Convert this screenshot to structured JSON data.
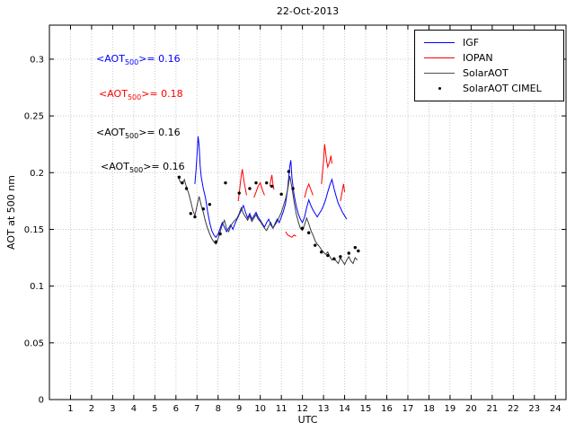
{
  "title": "22-Oct-2013",
  "axes": {
    "xlabel": "UTC",
    "ylabel": "AOT at 500 nm"
  },
  "annotations": [
    {
      "pre": "<AOT",
      "sub": "500",
      "post": ">= 0.16",
      "color": "#0000ff"
    },
    {
      "pre": "<AOT",
      "sub": "500",
      "post": ">= 0.18",
      "color": "#ff0000"
    },
    {
      "pre": "<AOT",
      "sub": "500",
      "post": ">= 0.16",
      "color": "#000000"
    },
    {
      "pre": "<AOT",
      "sub": "500",
      "post": ">= 0.16",
      "color": "#000000"
    }
  ],
  "legend": {
    "items": [
      {
        "label": "IGF",
        "color": "#0000ff",
        "type": "line"
      },
      {
        "label": "IOPAN",
        "color": "#ff0000",
        "type": "line"
      },
      {
        "label": "SolarAOT",
        "color": "#4d4d4d",
        "type": "line"
      },
      {
        "label": "SolarAOT CIMEL",
        "color": "#000000",
        "type": "dot"
      }
    ]
  },
  "chart_data": {
    "type": "line",
    "title": "22-Oct-2013",
    "xlabel": "UTC",
    "ylabel": "AOT at 500 nm",
    "xlim": [
      0,
      24.5
    ],
    "ylim": [
      0,
      0.33
    ],
    "grid": true,
    "legend_position": "top-right",
    "xticks": [
      1,
      2,
      3,
      4,
      5,
      6,
      7,
      8,
      9,
      10,
      11,
      12,
      13,
      14,
      15,
      16,
      17,
      18,
      19,
      20,
      21,
      22,
      23,
      24
    ],
    "xticklabels": [
      "1",
      "2",
      "3",
      "4",
      "5",
      "6",
      "7",
      "8",
      "9",
      "10",
      "11",
      "12",
      "13",
      "14",
      "15",
      "16",
      "17",
      "18",
      "19",
      "20",
      "21",
      "22",
      "23",
      "24"
    ],
    "yticks": [
      0,
      0.05,
      0.1,
      0.15,
      0.2,
      0.25,
      0.3
    ],
    "yticklabels": [
      "0",
      "0.05",
      "0.1",
      "0.15",
      "0.2",
      "0.25",
      "0.3"
    ],
    "series": [
      {
        "name": "IGF",
        "color": "#0000ff",
        "type": "line",
        "mean_label": "<AOT500>= 0.16",
        "points": [
          [
            6.9,
            0.19
          ],
          [
            6.95,
            0.201
          ],
          [
            7.0,
            0.216
          ],
          [
            7.05,
            0.232
          ],
          [
            7.1,
            0.224
          ],
          [
            7.15,
            0.206
          ],
          [
            7.2,
            0.196
          ],
          [
            7.3,
            0.186
          ],
          [
            7.4,
            0.178
          ],
          [
            7.5,
            0.166
          ],
          [
            7.6,
            0.156
          ],
          [
            7.7,
            0.149
          ],
          [
            7.8,
            0.145
          ],
          [
            7.9,
            0.143
          ],
          [
            8.0,
            0.146
          ],
          [
            8.1,
            0.151
          ],
          [
            8.2,
            0.156
          ],
          [
            8.3,
            0.152
          ],
          [
            8.4,
            0.148
          ],
          [
            8.5,
            0.151
          ],
          [
            8.6,
            0.154
          ],
          [
            8.7,
            0.15
          ],
          [
            8.8,
            0.155
          ],
          [
            8.9,
            0.159
          ],
          [
            9.0,
            0.163
          ],
          [
            9.1,
            0.167
          ],
          [
            9.2,
            0.171
          ],
          [
            9.3,
            0.165
          ],
          [
            9.4,
            0.16
          ],
          [
            9.5,
            0.164
          ],
          [
            9.6,
            0.159
          ],
          [
            9.7,
            0.162
          ],
          [
            9.8,
            0.165
          ],
          [
            9.9,
            0.161
          ],
          [
            10.0,
            0.158
          ],
          [
            10.1,
            0.155
          ],
          [
            10.2,
            0.152
          ],
          [
            10.3,
            0.156
          ],
          [
            10.4,
            0.159
          ],
          [
            10.5,
            0.154
          ],
          [
            10.6,
            0.151
          ],
          [
            10.7,
            0.155
          ],
          [
            10.8,
            0.159
          ],
          [
            10.9,
            0.156
          ],
          [
            11.0,
            0.161
          ],
          [
            11.1,
            0.166
          ],
          [
            11.2,
            0.173
          ],
          [
            11.3,
            0.186
          ],
          [
            11.4,
            0.206
          ],
          [
            11.45,
            0.211
          ],
          [
            11.5,
            0.196
          ],
          [
            11.6,
            0.181
          ],
          [
            11.7,
            0.171
          ],
          [
            11.8,
            0.164
          ],
          [
            11.9,
            0.159
          ],
          [
            12.0,
            0.156
          ],
          [
            12.1,
            0.161
          ],
          [
            12.2,
            0.169
          ],
          [
            12.3,
            0.176
          ],
          [
            12.4,
            0.171
          ],
          [
            12.5,
            0.167
          ],
          [
            12.6,
            0.164
          ],
          [
            12.7,
            0.161
          ],
          [
            12.8,
            0.164
          ],
          [
            12.9,
            0.167
          ],
          [
            13.0,
            0.171
          ],
          [
            13.1,
            0.176
          ],
          [
            13.2,
            0.183
          ],
          [
            13.3,
            0.189
          ],
          [
            13.4,
            0.194
          ],
          [
            13.5,
            0.186
          ],
          [
            13.6,
            0.179
          ],
          [
            13.7,
            0.173
          ],
          [
            13.8,
            0.169
          ],
          [
            13.9,
            0.165
          ],
          [
            14.0,
            0.162
          ],
          [
            14.1,
            0.159
          ]
        ]
      },
      {
        "name": "IOPAN",
        "color": "#ff0000",
        "type": "line",
        "mean_label": "<AOT500>= 0.18",
        "segments": [
          [
            [
              8.95,
              0.175
            ],
            [
              9.0,
              0.181
            ],
            [
              9.05,
              0.19
            ],
            [
              9.1,
              0.198
            ],
            [
              9.15,
              0.203
            ],
            [
              9.2,
              0.196
            ],
            [
              9.25,
              0.19
            ],
            [
              9.3,
              0.185
            ],
            [
              9.35,
              0.18
            ]
          ],
          [
            [
              9.7,
              0.178
            ],
            [
              9.8,
              0.183
            ],
            [
              9.9,
              0.188
            ],
            [
              10.0,
              0.191
            ],
            [
              10.1,
              0.185
            ],
            [
              10.2,
              0.18
            ]
          ],
          [
            [
              10.45,
              0.188
            ],
            [
              10.5,
              0.193
            ],
            [
              10.55,
              0.198
            ],
            [
              10.6,
              0.19
            ],
            [
              10.65,
              0.185
            ]
          ],
          [
            [
              11.2,
              0.148
            ],
            [
              11.3,
              0.145
            ],
            [
              11.4,
              0.144
            ],
            [
              11.5,
              0.143
            ],
            [
              11.6,
              0.145
            ],
            [
              11.7,
              0.144
            ]
          ],
          [
            [
              12.1,
              0.178
            ],
            [
              12.2,
              0.185
            ],
            [
              12.3,
              0.19
            ],
            [
              12.4,
              0.185
            ],
            [
              12.5,
              0.18
            ]
          ],
          [
            [
              12.9,
              0.19
            ],
            [
              12.95,
              0.2
            ],
            [
              13.0,
              0.21
            ],
            [
              13.05,
              0.225
            ],
            [
              13.1,
              0.218
            ],
            [
              13.15,
              0.21
            ],
            [
              13.2,
              0.205
            ],
            [
              13.3,
              0.21
            ],
            [
              13.35,
              0.215
            ],
            [
              13.4,
              0.208
            ]
          ],
          [
            [
              13.8,
              0.175
            ],
            [
              13.85,
              0.18
            ],
            [
              13.9,
              0.185
            ],
            [
              13.95,
              0.19
            ],
            [
              14.0,
              0.183
            ]
          ]
        ]
      },
      {
        "name": "SolarAOT",
        "color": "#3b3b3b",
        "type": "line",
        "mean_label": "<AOT500>= 0.16",
        "points": [
          [
            6.1,
            0.197
          ],
          [
            6.2,
            0.192
          ],
          [
            6.3,
            0.19
          ],
          [
            6.4,
            0.194
          ],
          [
            6.5,
            0.187
          ],
          [
            6.6,
            0.182
          ],
          [
            6.7,
            0.175
          ],
          [
            6.8,
            0.167
          ],
          [
            6.9,
            0.162
          ],
          [
            7.0,
            0.171
          ],
          [
            7.1,
            0.179
          ],
          [
            7.2,
            0.171
          ],
          [
            7.3,
            0.165
          ],
          [
            7.4,
            0.157
          ],
          [
            7.5,
            0.151
          ],
          [
            7.6,
            0.146
          ],
          [
            7.7,
            0.142
          ],
          [
            7.8,
            0.139
          ],
          [
            7.9,
            0.137
          ],
          [
            8.0,
            0.142
          ],
          [
            8.1,
            0.148
          ],
          [
            8.2,
            0.154
          ],
          [
            8.3,
            0.158
          ],
          [
            8.4,
            0.151
          ],
          [
            8.5,
            0.148
          ],
          [
            8.6,
            0.153
          ],
          [
            8.7,
            0.156
          ],
          [
            8.8,
            0.158
          ],
          [
            8.9,
            0.16
          ],
          [
            9.0,
            0.164
          ],
          [
            9.1,
            0.169
          ],
          [
            9.2,
            0.164
          ],
          [
            9.3,
            0.161
          ],
          [
            9.4,
            0.158
          ],
          [
            9.5,
            0.162
          ],
          [
            9.6,
            0.157
          ],
          [
            9.7,
            0.16
          ],
          [
            9.8,
            0.163
          ],
          [
            9.9,
            0.159
          ],
          [
            10.0,
            0.157
          ],
          [
            10.1,
            0.154
          ],
          [
            10.2,
            0.151
          ],
          [
            10.3,
            0.149
          ],
          [
            10.4,
            0.153
          ],
          [
            10.5,
            0.156
          ],
          [
            10.6,
            0.151
          ],
          [
            10.7,
            0.154
          ],
          [
            10.8,
            0.157
          ],
          [
            10.9,
            0.161
          ],
          [
            11.0,
            0.165
          ],
          [
            11.1,
            0.171
          ],
          [
            11.2,
            0.177
          ],
          [
            11.3,
            0.185
          ],
          [
            11.4,
            0.197
          ],
          [
            11.5,
            0.187
          ],
          [
            11.6,
            0.175
          ],
          [
            11.7,
            0.164
          ],
          [
            11.8,
            0.157
          ],
          [
            11.9,
            0.151
          ],
          [
            12.0,
            0.149
          ],
          [
            12.1,
            0.154
          ],
          [
            12.2,
            0.16
          ],
          [
            12.3,
            0.155
          ],
          [
            12.4,
            0.149
          ],
          [
            12.5,
            0.145
          ],
          [
            12.6,
            0.14
          ],
          [
            12.7,
            0.137
          ],
          [
            12.8,
            0.135
          ],
          [
            12.9,
            0.132
          ],
          [
            13.0,
            0.13
          ],
          [
            13.1,
            0.128
          ],
          [
            13.2,
            0.13
          ],
          [
            13.3,
            0.126
          ],
          [
            13.4,
            0.123
          ],
          [
            13.5,
            0.125
          ],
          [
            13.6,
            0.122
          ],
          [
            13.7,
            0.12
          ],
          [
            13.8,
            0.125
          ],
          [
            13.9,
            0.122
          ],
          [
            14.0,
            0.119
          ],
          [
            14.1,
            0.123
          ],
          [
            14.2,
            0.126
          ],
          [
            14.3,
            0.122
          ],
          [
            14.4,
            0.12
          ],
          [
            14.5,
            0.125
          ],
          [
            14.6,
            0.123
          ]
        ]
      },
      {
        "name": "SolarAOT CIMEL",
        "color": "#000000",
        "type": "scatter",
        "mean_label": "<AOT500>= 0.16",
        "points": [
          [
            6.15,
            0.196
          ],
          [
            6.3,
            0.191
          ],
          [
            6.5,
            0.186
          ],
          [
            6.7,
            0.164
          ],
          [
            6.9,
            0.161
          ],
          [
            7.3,
            0.168
          ],
          [
            7.6,
            0.172
          ],
          [
            7.9,
            0.139
          ],
          [
            8.1,
            0.146
          ],
          [
            8.35,
            0.191
          ],
          [
            9.0,
            0.182
          ],
          [
            9.5,
            0.186
          ],
          [
            9.8,
            0.191
          ],
          [
            10.3,
            0.191
          ],
          [
            10.55,
            0.188
          ],
          [
            11.0,
            0.181
          ],
          [
            11.35,
            0.201
          ],
          [
            11.55,
            0.186
          ],
          [
            12.0,
            0.151
          ],
          [
            12.3,
            0.147
          ],
          [
            12.6,
            0.136
          ],
          [
            12.9,
            0.13
          ],
          [
            13.2,
            0.127
          ],
          [
            13.5,
            0.124
          ],
          [
            13.8,
            0.126
          ],
          [
            14.2,
            0.129
          ],
          [
            14.5,
            0.134
          ],
          [
            14.65,
            0.131
          ]
        ]
      }
    ]
  }
}
